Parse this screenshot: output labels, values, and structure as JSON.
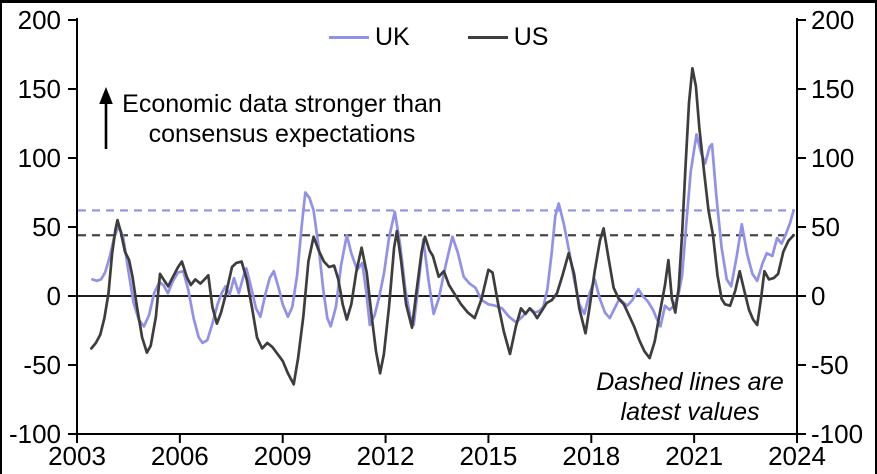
{
  "figure": {
    "background": "#ffffff",
    "frame_color": "#000000"
  },
  "legend": {
    "items": [
      {
        "label": "UK",
        "color": "#9191e9"
      },
      {
        "label": "US",
        "color": "#3d3d3d"
      }
    ]
  },
  "annotation": {
    "line1": "Economic data stronger than",
    "line2": "consensus expectations",
    "arrow": "up-arrow"
  },
  "note": {
    "line1": "Dashed lines are",
    "line2": "latest values"
  },
  "axes": {
    "y_ticks": [
      "200",
      "150",
      "100",
      "50",
      "0",
      "-50",
      "-100"
    ],
    "x_ticks": [
      "2003",
      "2006",
      "2009",
      "2012",
      "2015",
      "2018",
      "2021",
      "2024"
    ]
  },
  "chart_data": {
    "type": "line",
    "title": "",
    "xlabel": "",
    "ylabel": "",
    "x_range": [
      2003,
      2024
    ],
    "y_range": [
      -100,
      200
    ],
    "grid": false,
    "legend_position": "top-center",
    "dashed_latest_values": [
      {
        "name": "UK",
        "value": 62,
        "color": "#9191e9"
      },
      {
        "name": "US",
        "value": 44,
        "color": "#474747"
      }
    ],
    "series": [
      {
        "name": "UK",
        "color": "#9191e9",
        "points": [
          [
            2003.45,
            12
          ],
          [
            2003.58,
            11
          ],
          [
            2003.7,
            12
          ],
          [
            2003.82,
            17
          ],
          [
            2003.95,
            28
          ],
          [
            2004.08,
            42
          ],
          [
            2004.22,
            51
          ],
          [
            2004.35,
            42
          ],
          [
            2004.5,
            18
          ],
          [
            2004.65,
            -5
          ],
          [
            2004.8,
            -17
          ],
          [
            2004.95,
            -22
          ],
          [
            2005.1,
            -14
          ],
          [
            2005.25,
            2
          ],
          [
            2005.4,
            10
          ],
          [
            2005.52,
            8
          ],
          [
            2005.65,
            2
          ],
          [
            2005.8,
            11
          ],
          [
            2005.95,
            17
          ],
          [
            2006.1,
            18
          ],
          [
            2006.25,
            4
          ],
          [
            2006.4,
            -16
          ],
          [
            2006.55,
            -30
          ],
          [
            2006.66,
            -34
          ],
          [
            2006.8,
            -32
          ],
          [
            2006.95,
            -20
          ],
          [
            2007.1,
            -6
          ],
          [
            2007.22,
            2
          ],
          [
            2007.33,
            7
          ],
          [
            2007.45,
            1
          ],
          [
            2007.58,
            13
          ],
          [
            2007.72,
            2
          ],
          [
            2007.85,
            14
          ],
          [
            2007.94,
            20
          ],
          [
            2008.08,
            6
          ],
          [
            2008.22,
            -9
          ],
          [
            2008.35,
            -15
          ],
          [
            2008.5,
            2
          ],
          [
            2008.62,
            13
          ],
          [
            2008.74,
            18
          ],
          [
            2008.88,
            6
          ],
          [
            2009.0,
            -6
          ],
          [
            2009.15,
            -15
          ],
          [
            2009.28,
            -8
          ],
          [
            2009.42,
            15
          ],
          [
            2009.55,
            50
          ],
          [
            2009.66,
            75
          ],
          [
            2009.78,
            71
          ],
          [
            2009.9,
            62
          ],
          [
            2010.05,
            35
          ],
          [
            2010.18,
            5
          ],
          [
            2010.3,
            -16
          ],
          [
            2010.4,
            -22
          ],
          [
            2010.55,
            -8
          ],
          [
            2010.7,
            22
          ],
          [
            2010.87,
            44
          ],
          [
            2011.0,
            31
          ],
          [
            2011.17,
            19
          ],
          [
            2011.32,
            24
          ],
          [
            2011.44,
            2
          ],
          [
            2011.54,
            -21
          ],
          [
            2011.68,
            -14
          ],
          [
            2011.82,
            0
          ],
          [
            2011.95,
            16
          ],
          [
            2012.1,
            42
          ],
          [
            2012.27,
            61
          ],
          [
            2012.42,
            38
          ],
          [
            2012.58,
            4
          ],
          [
            2012.72,
            -15
          ],
          [
            2012.82,
            -21
          ],
          [
            2012.95,
            6
          ],
          [
            2013.1,
            41
          ],
          [
            2013.25,
            12
          ],
          [
            2013.4,
            -13
          ],
          [
            2013.55,
            -2
          ],
          [
            2013.75,
            22
          ],
          [
            2013.95,
            43
          ],
          [
            2014.1,
            32
          ],
          [
            2014.28,
            14
          ],
          [
            2014.45,
            9
          ],
          [
            2014.62,
            6
          ],
          [
            2014.8,
            -3
          ],
          [
            2015.0,
            -6
          ],
          [
            2015.2,
            -7
          ],
          [
            2015.4,
            -9
          ],
          [
            2015.6,
            -15
          ],
          [
            2015.8,
            -19
          ],
          [
            2015.95,
            -16
          ],
          [
            2016.1,
            -12
          ],
          [
            2016.22,
            -9
          ],
          [
            2016.35,
            -12
          ],
          [
            2016.48,
            -11
          ],
          [
            2016.6,
            -8
          ],
          [
            2016.72,
            5
          ],
          [
            2016.84,
            30
          ],
          [
            2016.95,
            58
          ],
          [
            2017.05,
            67
          ],
          [
            2017.2,
            52
          ],
          [
            2017.35,
            33
          ],
          [
            2017.5,
            12
          ],
          [
            2017.65,
            -6
          ],
          [
            2017.8,
            -13
          ],
          [
            2017.95,
            2
          ],
          [
            2018.1,
            12
          ],
          [
            2018.25,
            -2
          ],
          [
            2018.4,
            -12
          ],
          [
            2018.54,
            -16
          ],
          [
            2018.68,
            -9
          ],
          [
            2018.82,
            -2
          ],
          [
            2018.95,
            -5
          ],
          [
            2019.05,
            -7
          ],
          [
            2019.2,
            -3
          ],
          [
            2019.37,
            5
          ],
          [
            2019.5,
            0
          ],
          [
            2019.65,
            -4
          ],
          [
            2019.8,
            -10
          ],
          [
            2019.92,
            -17
          ],
          [
            2020.02,
            -22
          ],
          [
            2020.15,
            -7
          ],
          [
            2020.28,
            -10
          ],
          [
            2020.42,
            -7
          ],
          [
            2020.55,
            2
          ],
          [
            2020.65,
            15
          ],
          [
            2020.78,
            55
          ],
          [
            2020.9,
            90
          ],
          [
            2021.07,
            117
          ],
          [
            2021.2,
            104
          ],
          [
            2021.32,
            96
          ],
          [
            2021.45,
            108
          ],
          [
            2021.52,
            110
          ],
          [
            2021.65,
            72
          ],
          [
            2021.8,
            35
          ],
          [
            2021.95,
            12
          ],
          [
            2022.08,
            7
          ],
          [
            2022.25,
            30
          ],
          [
            2022.39,
            52
          ],
          [
            2022.55,
            30
          ],
          [
            2022.7,
            16
          ],
          [
            2022.84,
            11
          ],
          [
            2023.0,
            24
          ],
          [
            2023.12,
            31
          ],
          [
            2023.28,
            29
          ],
          [
            2023.42,
            42
          ],
          [
            2023.55,
            38
          ],
          [
            2023.68,
            45
          ],
          [
            2023.8,
            53
          ],
          [
            2023.9,
            62
          ]
        ]
      },
      {
        "name": "US",
        "color": "#3d3d3d",
        "points": [
          [
            2003.42,
            -38
          ],
          [
            2003.55,
            -34
          ],
          [
            2003.68,
            -28
          ],
          [
            2003.8,
            -16
          ],
          [
            2003.92,
            2
          ],
          [
            2004.02,
            30
          ],
          [
            2004.12,
            48
          ],
          [
            2004.18,
            55
          ],
          [
            2004.28,
            46
          ],
          [
            2004.4,
            32
          ],
          [
            2004.52,
            26
          ],
          [
            2004.62,
            14
          ],
          [
            2004.75,
            -8
          ],
          [
            2004.9,
            -30
          ],
          [
            2005.04,
            -41
          ],
          [
            2005.15,
            -36
          ],
          [
            2005.3,
            -15
          ],
          [
            2005.42,
            16
          ],
          [
            2005.55,
            11
          ],
          [
            2005.66,
            7
          ],
          [
            2005.8,
            14
          ],
          [
            2005.95,
            21
          ],
          [
            2006.06,
            25
          ],
          [
            2006.2,
            14
          ],
          [
            2006.32,
            8
          ],
          [
            2006.45,
            12
          ],
          [
            2006.6,
            9
          ],
          [
            2006.72,
            12
          ],
          [
            2006.83,
            15
          ],
          [
            2006.95,
            -8
          ],
          [
            2007.08,
            -20
          ],
          [
            2007.2,
            -12
          ],
          [
            2007.35,
            2
          ],
          [
            2007.52,
            21
          ],
          [
            2007.65,
            24
          ],
          [
            2007.8,
            25
          ],
          [
            2007.95,
            12
          ],
          [
            2008.1,
            -8
          ],
          [
            2008.25,
            -30
          ],
          [
            2008.4,
            -38
          ],
          [
            2008.55,
            -34
          ],
          [
            2008.7,
            -37
          ],
          [
            2008.85,
            -42
          ],
          [
            2009.0,
            -47
          ],
          [
            2009.15,
            -56
          ],
          [
            2009.32,
            -64
          ],
          [
            2009.45,
            -45
          ],
          [
            2009.6,
            -15
          ],
          [
            2009.75,
            25
          ],
          [
            2009.9,
            43
          ],
          [
            2010.05,
            33
          ],
          [
            2010.2,
            25
          ],
          [
            2010.35,
            21
          ],
          [
            2010.5,
            22
          ],
          [
            2010.62,
            12
          ],
          [
            2010.75,
            -6
          ],
          [
            2010.87,
            -17
          ],
          [
            2011.0,
            -6
          ],
          [
            2011.15,
            18
          ],
          [
            2011.3,
            35
          ],
          [
            2011.45,
            17
          ],
          [
            2011.6,
            -16
          ],
          [
            2011.72,
            -40
          ],
          [
            2011.84,
            -56
          ],
          [
            2011.95,
            -42
          ],
          [
            2012.1,
            -8
          ],
          [
            2012.25,
            35
          ],
          [
            2012.33,
            47
          ],
          [
            2012.45,
            26
          ],
          [
            2012.6,
            -6
          ],
          [
            2012.77,
            -23
          ],
          [
            2012.9,
            3
          ],
          [
            2013.05,
            32
          ],
          [
            2013.15,
            43
          ],
          [
            2013.28,
            33
          ],
          [
            2013.38,
            29
          ],
          [
            2013.55,
            14
          ],
          [
            2013.7,
            18
          ],
          [
            2013.85,
            8
          ],
          [
            2014.0,
            2
          ],
          [
            2014.2,
            -6
          ],
          [
            2014.4,
            -12
          ],
          [
            2014.6,
            -16
          ],
          [
            2014.8,
            -2
          ],
          [
            2015.0,
            19
          ],
          [
            2015.12,
            17
          ],
          [
            2015.3,
            -8
          ],
          [
            2015.45,
            -26
          ],
          [
            2015.63,
            -42
          ],
          [
            2015.8,
            -22
          ],
          [
            2015.95,
            -9
          ],
          [
            2016.08,
            -13
          ],
          [
            2016.2,
            -9
          ],
          [
            2016.32,
            -12
          ],
          [
            2016.42,
            -16
          ],
          [
            2016.55,
            -11
          ],
          [
            2016.7,
            -5
          ],
          [
            2016.85,
            -3
          ],
          [
            2017.0,
            2
          ],
          [
            2017.15,
            14
          ],
          [
            2017.34,
            31
          ],
          [
            2017.5,
            16
          ],
          [
            2017.65,
            -9
          ],
          [
            2017.83,
            -27
          ],
          [
            2017.95,
            -8
          ],
          [
            2018.1,
            18
          ],
          [
            2018.25,
            40
          ],
          [
            2018.36,
            49
          ],
          [
            2018.5,
            28
          ],
          [
            2018.65,
            6
          ],
          [
            2018.8,
            -2
          ],
          [
            2018.95,
            -6
          ],
          [
            2019.1,
            -14
          ],
          [
            2019.25,
            -22
          ],
          [
            2019.4,
            -32
          ],
          [
            2019.55,
            -40
          ],
          [
            2019.7,
            -45
          ],
          [
            2019.85,
            -33
          ],
          [
            2020.0,
            -12
          ],
          [
            2020.15,
            8
          ],
          [
            2020.25,
            26
          ],
          [
            2020.35,
            -2
          ],
          [
            2020.45,
            -12
          ],
          [
            2020.55,
            6
          ],
          [
            2020.65,
            45
          ],
          [
            2020.75,
            95
          ],
          [
            2020.85,
            140
          ],
          [
            2020.95,
            165
          ],
          [
            2021.05,
            152
          ],
          [
            2021.15,
            122
          ],
          [
            2021.3,
            88
          ],
          [
            2021.42,
            62
          ],
          [
            2021.55,
            44
          ],
          [
            2021.68,
            15
          ],
          [
            2021.8,
            -2
          ],
          [
            2021.9,
            -6
          ],
          [
            2022.05,
            -7
          ],
          [
            2022.2,
            4
          ],
          [
            2022.33,
            18
          ],
          [
            2022.45,
            5
          ],
          [
            2022.6,
            -10
          ],
          [
            2022.72,
            -17
          ],
          [
            2022.84,
            -21
          ],
          [
            2022.95,
            -2
          ],
          [
            2023.05,
            18
          ],
          [
            2023.18,
            12
          ],
          [
            2023.32,
            13
          ],
          [
            2023.45,
            16
          ],
          [
            2023.6,
            32
          ],
          [
            2023.75,
            40
          ],
          [
            2023.9,
            44
          ]
        ]
      }
    ]
  }
}
